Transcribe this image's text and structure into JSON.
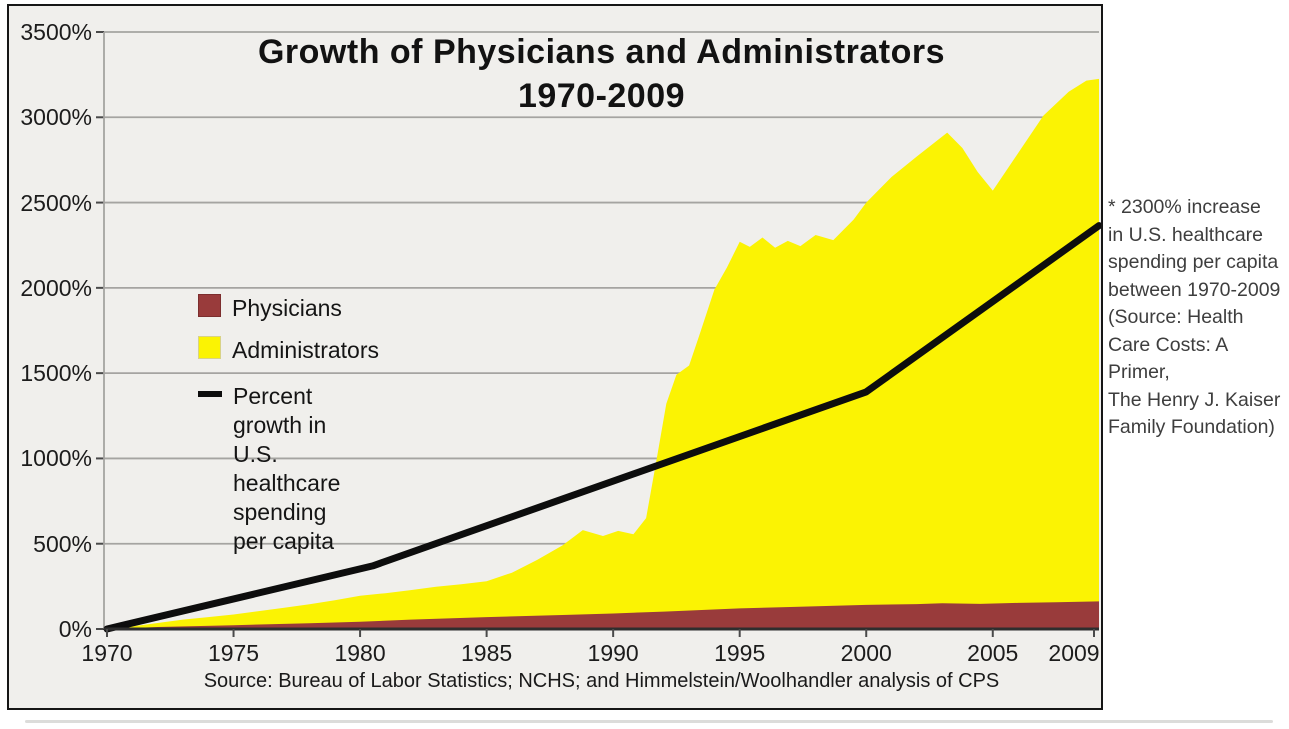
{
  "chart": {
    "title_line1": "Growth of Physicians and Administrators",
    "title_line2": "1970-2009",
    "source_note": "Source: Bureau of Labor Statistics; NCHS; and Himmelstein/Woolhandler analysis of CPS",
    "legend": [
      {
        "label": "Physicians",
        "swatch": "physicians-area-swatch",
        "color": "#993b3b"
      },
      {
        "label": "Administrators",
        "swatch": "administrators-area-swatch",
        "color": "#fbf303"
      },
      {
        "label": "Percent growth in U.S. healthcare\nspending per capita",
        "swatch": "spending-line-swatch",
        "color": "#0d0d0d"
      }
    ],
    "colors": {
      "plot_background": "#f0efec",
      "grid": "#a5a4a1",
      "axis": "#2e2e2e",
      "border": "#161616",
      "physicians": "#993b3b",
      "administrators": "#fbf303",
      "spending_line": "#0d0d0d"
    }
  },
  "annotation": {
    "text": "* 2300% increase\nin U.S. healthcare\nspending per capita\nbetween 1970-2009\n(Source: Health\nCare Costs: A Primer,\nThe Henry J. Kaiser\nFamily Foundation)"
  },
  "chart_data": {
    "type": "area",
    "title": "Growth of Physicians and Administrators 1970-2009",
    "xlabel": "",
    "ylabel": "Percent growth",
    "y_unit": "%",
    "ylim": [
      0,
      3500
    ],
    "y_tick_step": 500,
    "y_tick_labels": [
      "0%",
      "500%",
      "1000%",
      "1500%",
      "2000%",
      "2500%",
      "3000%",
      "3500%"
    ],
    "x_tick_years": [
      1970,
      1975,
      1980,
      1985,
      1990,
      1995,
      2000,
      2005,
      2009
    ],
    "x_tick_labels": [
      "1970",
      "1975",
      "1980",
      "1985",
      "1990",
      "1995",
      "2000",
      "2005",
      "2009"
    ],
    "grid": true,
    "legend_position": "inside-left",
    "series": [
      {
        "name": "Administrators",
        "render": "area",
        "color": "#fbf303",
        "points": [
          [
            1970,
            0
          ],
          [
            1971,
            15
          ],
          [
            1972,
            35
          ],
          [
            1973,
            55
          ],
          [
            1974,
            70
          ],
          [
            1975,
            85
          ],
          [
            1976,
            105
          ],
          [
            1977,
            125
          ],
          [
            1978,
            145
          ],
          [
            1979,
            168
          ],
          [
            1980,
            195
          ],
          [
            1981,
            210
          ],
          [
            1982,
            228
          ],
          [
            1983,
            248
          ],
          [
            1984,
            262
          ],
          [
            1985,
            280
          ],
          [
            1986,
            330
          ],
          [
            1987,
            405
          ],
          [
            1988,
            490
          ],
          [
            1988.8,
            580
          ],
          [
            1989.6,
            545
          ],
          [
            1990.2,
            575
          ],
          [
            1990.8,
            555
          ],
          [
            1991.3,
            650
          ],
          [
            1991.7,
            980
          ],
          [
            1992.1,
            1320
          ],
          [
            1992.5,
            1490
          ],
          [
            1993,
            1545
          ],
          [
            1993.4,
            1720
          ],
          [
            1994,
            1990
          ],
          [
            1994.5,
            2120
          ],
          [
            1995,
            2270
          ],
          [
            1995.4,
            2240
          ],
          [
            1995.9,
            2295
          ],
          [
            1996.4,
            2235
          ],
          [
            1996.9,
            2275
          ],
          [
            1997.4,
            2245
          ],
          [
            1998,
            2310
          ],
          [
            1998.7,
            2280
          ],
          [
            1999.5,
            2400
          ],
          [
            2000,
            2500
          ],
          [
            2001,
            2650
          ],
          [
            2002,
            2770
          ],
          [
            2003.2,
            2910
          ],
          [
            2003.8,
            2820
          ],
          [
            2004.4,
            2680
          ],
          [
            2005,
            2570
          ],
          [
            2006,
            2790
          ],
          [
            2007,
            3010
          ],
          [
            2008,
            3150
          ],
          [
            2008.7,
            3215
          ],
          [
            2009.2,
            3225
          ]
        ]
      },
      {
        "name": "Physicians",
        "render": "area",
        "color": "#993b3b",
        "points": [
          [
            1970,
            0
          ],
          [
            1972,
            12
          ],
          [
            1975,
            22
          ],
          [
            1978,
            34
          ],
          [
            1980,
            42
          ],
          [
            1982,
            55
          ],
          [
            1985,
            70
          ],
          [
            1988,
            82
          ],
          [
            1990,
            91
          ],
          [
            1992,
            102
          ],
          [
            1995,
            121
          ],
          [
            1997,
            129
          ],
          [
            2000,
            141
          ],
          [
            2002,
            146
          ],
          [
            2003,
            151
          ],
          [
            2004.5,
            147
          ],
          [
            2006,
            153
          ],
          [
            2007.5,
            157
          ],
          [
            2009.2,
            162
          ]
        ]
      },
      {
        "name": "Percent growth in U.S. healthcare spending per capita",
        "render": "line",
        "color": "#0d0d0d",
        "points": [
          [
            1970,
            0
          ],
          [
            1980.5,
            370
          ],
          [
            2000,
            1390
          ],
          [
            2009.2,
            2365
          ]
        ]
      }
    ]
  }
}
